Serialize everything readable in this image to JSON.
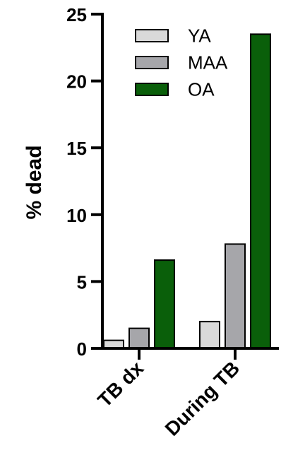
{
  "chart_data": {
    "type": "bar",
    "ylabel": "% dead",
    "xlabel": "",
    "ylim": [
      0,
      25
    ],
    "yticks": [
      0,
      5,
      10,
      15,
      20,
      25
    ],
    "categories": [
      "TB dx",
      "During TB"
    ],
    "series": [
      {
        "name": "YA",
        "color": "#d9d9d9",
        "values": [
          0.6,
          2.0
        ]
      },
      {
        "name": "MAA",
        "color": "#a6a6aa",
        "values": [
          1.5,
          7.8
        ]
      },
      {
        "name": "OA",
        "color": "#0a5f0a",
        "values": [
          6.6,
          23.5
        ]
      }
    ],
    "legend": "top-right",
    "grid": false
  }
}
